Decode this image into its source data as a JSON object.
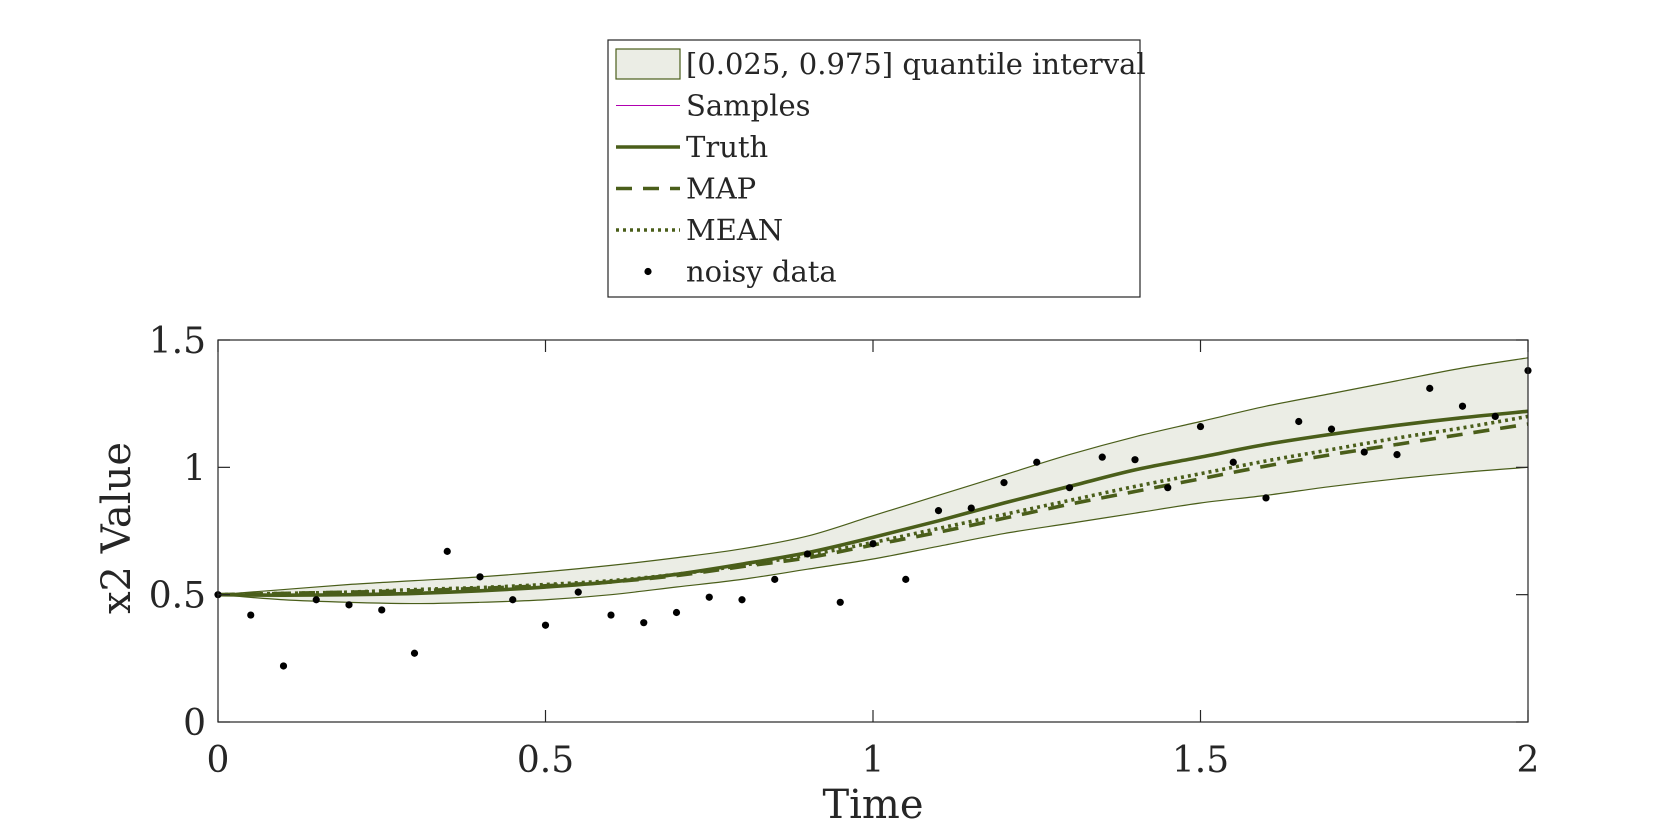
{
  "chart_data": {
    "type": "line",
    "title": "",
    "xlabel": "Time",
    "ylabel": "x2 Value",
    "xlim": [
      0,
      2
    ],
    "ylim": [
      0,
      1.5
    ],
    "xticks": [
      0,
      0.5,
      1,
      1.5,
      2
    ],
    "xtick_labels": [
      "0",
      "0.5",
      "1",
      "1.5",
      "2"
    ],
    "yticks": [
      0,
      0.5,
      1,
      1.5
    ],
    "ytick_labels": [
      "0",
      "0.5",
      "1",
      "1.5"
    ],
    "grid": false,
    "legend_position": "top-center (outside, above axes)",
    "colors": {
      "band_fill": "#ebede5",
      "band_edge": "#4a5e1a",
      "truth": "#4a5e1a",
      "map": "#4a5e1a",
      "mean": "#4a5e1a",
      "samples": "#b000b0",
      "data": "#000000"
    },
    "x": [
      0,
      0.1,
      0.2,
      0.3,
      0.4,
      0.5,
      0.6,
      0.7,
      0.8,
      0.9,
      1.0,
      1.1,
      1.2,
      1.3,
      1.4,
      1.5,
      1.6,
      1.7,
      1.8,
      1.9,
      2.0
    ],
    "series": [
      {
        "name": "[0.025, 0.975] quantile interval",
        "style": "band",
        "lower": [
          0.5,
          0.48,
          0.47,
          0.465,
          0.47,
          0.48,
          0.5,
          0.53,
          0.56,
          0.6,
          0.64,
          0.69,
          0.74,
          0.78,
          0.82,
          0.86,
          0.89,
          0.925,
          0.955,
          0.98,
          1.0
        ],
        "upper": [
          0.5,
          0.52,
          0.54,
          0.555,
          0.57,
          0.59,
          0.615,
          0.645,
          0.68,
          0.73,
          0.81,
          0.89,
          0.97,
          1.05,
          1.12,
          1.18,
          1.24,
          1.29,
          1.34,
          1.39,
          1.43
        ]
      },
      {
        "name": "Samples",
        "style": "thin"
      },
      {
        "name": "Truth",
        "style": "solid",
        "values": [
          0.5,
          0.498,
          0.5,
          0.505,
          0.515,
          0.53,
          0.55,
          0.58,
          0.62,
          0.665,
          0.725,
          0.79,
          0.86,
          0.925,
          0.99,
          1.04,
          1.09,
          1.13,
          1.165,
          1.195,
          1.22
        ]
      },
      {
        "name": "MAP",
        "style": "dashed",
        "values": [
          0.5,
          0.505,
          0.51,
          0.515,
          0.525,
          0.535,
          0.55,
          0.575,
          0.61,
          0.645,
          0.695,
          0.745,
          0.8,
          0.855,
          0.905,
          0.955,
          1.005,
          1.05,
          1.09,
          1.13,
          1.17
        ]
      },
      {
        "name": "MEAN",
        "style": "dotted",
        "values": [
          0.5,
          0.505,
          0.51,
          0.52,
          0.528,
          0.54,
          0.555,
          0.58,
          0.615,
          0.655,
          0.705,
          0.76,
          0.815,
          0.87,
          0.925,
          0.975,
          1.025,
          1.07,
          1.115,
          1.155,
          1.2
        ]
      },
      {
        "name": "noisy data",
        "style": "points",
        "x": [
          0,
          0.05,
          0.1,
          0.15,
          0.2,
          0.25,
          0.3,
          0.35,
          0.4,
          0.45,
          0.5,
          0.55,
          0.6,
          0.65,
          0.7,
          0.75,
          0.8,
          0.85,
          0.9,
          0.95,
          1.0,
          1.05,
          1.1,
          1.15,
          1.2,
          1.25,
          1.3,
          1.35,
          1.4,
          1.45,
          1.5,
          1.55,
          1.6,
          1.65,
          1.7,
          1.75,
          1.8,
          1.85,
          1.9,
          1.95,
          2.0
        ],
        "values": [
          0.5,
          0.42,
          0.22,
          0.48,
          0.46,
          0.44,
          0.27,
          0.67,
          0.57,
          0.48,
          0.38,
          0.51,
          0.42,
          0.39,
          0.43,
          0.49,
          0.48,
          0.56,
          0.66,
          0.47,
          0.7,
          0.56,
          0.83,
          0.84,
          0.94,
          1.02,
          0.92,
          1.04,
          1.03,
          0.92,
          1.16,
          1.02,
          0.88,
          1.18,
          1.15,
          1.06,
          1.05,
          1.31,
          1.24,
          1.2,
          1.38
        ]
      }
    ],
    "legend": [
      {
        "label": "[0.025, 0.975] quantile interval",
        "style": "band"
      },
      {
        "label": "Samples",
        "style": "thin"
      },
      {
        "label": "Truth",
        "style": "solid"
      },
      {
        "label": "MAP",
        "style": "dashed"
      },
      {
        "label": "MEAN",
        "style": "dotted"
      },
      {
        "label": "noisy data",
        "style": "points"
      }
    ]
  }
}
